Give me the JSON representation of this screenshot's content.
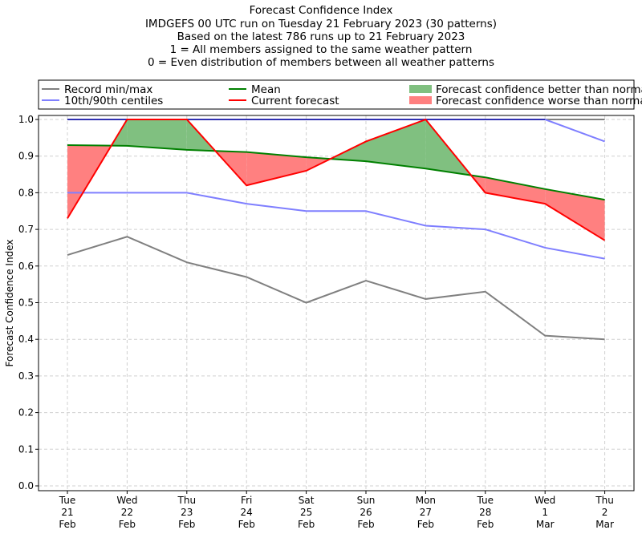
{
  "chart_data": {
    "type": "line",
    "title_lines": [
      "Forecast Confidence Index",
      "IMDGEFS 00 UTC run on Tuesday 21 February 2023 (30 patterns)",
      "Based on the latest 786 runs up to 21 February 2023",
      "1 = All members assigned to the same weather pattern",
      "0 = Even distribution of members between all weather patterns"
    ],
    "ylabel": "Forecast Confidence Index",
    "ylim": [
      0,
      1
    ],
    "yticks": [
      "0.0",
      "0.1",
      "0.2",
      "0.3",
      "0.4",
      "0.5",
      "0.6",
      "0.7",
      "0.8",
      "0.9",
      "1.0"
    ],
    "categories": [
      [
        "Tue",
        "21",
        "Feb"
      ],
      [
        "Wed",
        "22",
        "Feb"
      ],
      [
        "Thu",
        "23",
        "Feb"
      ],
      [
        "Fri",
        "24",
        "Feb"
      ],
      [
        "Sat",
        "25",
        "Feb"
      ],
      [
        "Sun",
        "26",
        "Feb"
      ],
      [
        "Mon",
        "27",
        "Feb"
      ],
      [
        "Tue",
        "28",
        "Feb"
      ],
      [
        "Wed",
        "1",
        "Mar"
      ],
      [
        "Thu",
        "2",
        "Mar"
      ]
    ],
    "grid": true,
    "legend_placement": "top, above plot",
    "series": {
      "record_min": [
        0.63,
        0.68,
        0.61,
        0.57,
        0.5,
        0.56,
        0.51,
        0.53,
        0.41,
        0.4
      ],
      "record_max": [
        1.0,
        1.0,
        1.0,
        1.0,
        1.0,
        1.0,
        1.0,
        1.0,
        1.0,
        1.0
      ],
      "p10": [
        0.8,
        0.8,
        0.8,
        0.77,
        0.75,
        0.75,
        0.71,
        0.7,
        0.65,
        0.62
      ],
      "p90": [
        1.0,
        1.0,
        1.0,
        1.0,
        1.0,
        1.0,
        1.0,
        1.0,
        1.0,
        0.94
      ],
      "mean": [
        0.93,
        0.928,
        0.917,
        0.911,
        0.897,
        0.886,
        0.866,
        0.842,
        0.81,
        0.781
      ],
      "current": [
        0.73,
        1.0,
        1.0,
        0.82,
        0.86,
        0.94,
        1.0,
        0.8,
        0.77,
        0.67
      ]
    },
    "legend": [
      {
        "label": "Record min/max",
        "color": "#808080",
        "kind": "line"
      },
      {
        "label": "Mean",
        "color": "#008000",
        "kind": "line"
      },
      {
        "label": "Forecast confidence better than normal",
        "color": "#80c080",
        "kind": "patch"
      },
      {
        "label": "10th/90th centiles",
        "color": "#8080ff",
        "kind": "line"
      },
      {
        "label": "Current forecast",
        "color": "#ff0000",
        "kind": "line"
      },
      {
        "label": "Forecast confidence worse than normal",
        "color": "#ff8080",
        "kind": "patch"
      }
    ],
    "colors": {
      "record": "#808080",
      "centiles": "#7f7fff",
      "mean": "#008000",
      "current": "#ff0000",
      "better": "#80c080",
      "worse": "#ff8080"
    }
  }
}
